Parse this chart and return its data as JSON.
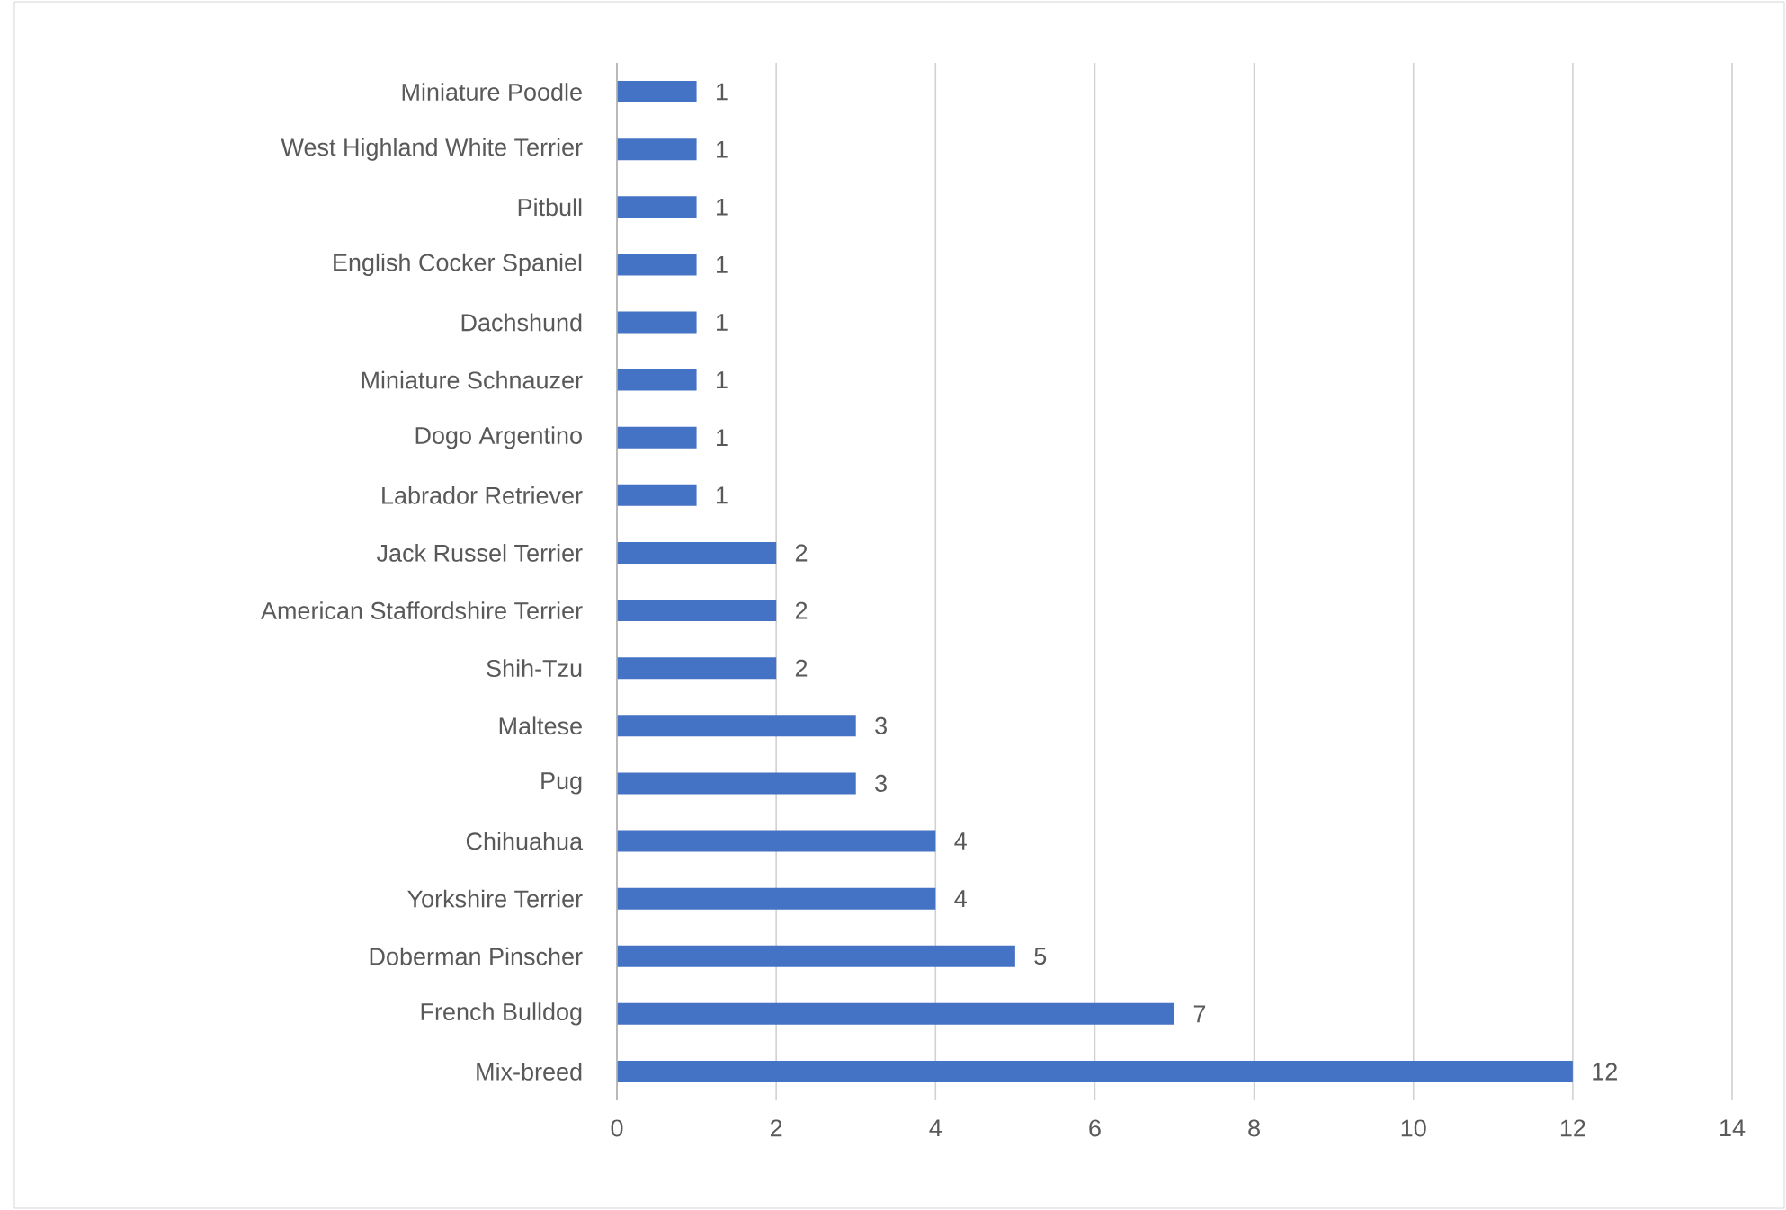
{
  "chart_data": {
    "type": "bar",
    "orientation": "horizontal",
    "categories": [
      "Miniature Poodle",
      "West Highland White Terrier",
      "Pitbull",
      "English Cocker Spaniel",
      "Dachshund",
      "Miniature Schnauzer",
      "Dogo Argentino",
      "Labrador Retriever",
      "Jack Russel Terrier",
      "American Staffordshire Terrier",
      "Shih-Tzu",
      "Maltese",
      "Pug",
      "Chihuahua",
      "Yorkshire Terrier",
      "Doberman Pinscher",
      "French Bulldog",
      "Mix-breed"
    ],
    "values": [
      1,
      1,
      1,
      1,
      1,
      1,
      1,
      1,
      2,
      2,
      2,
      3,
      3,
      4,
      4,
      5,
      7,
      12
    ],
    "color": "#4472c4",
    "xlim": [
      0,
      14
    ],
    "xticks": [
      0,
      2,
      4,
      6,
      8,
      10,
      12,
      14
    ],
    "grid": "x",
    "data_labels": true
  }
}
